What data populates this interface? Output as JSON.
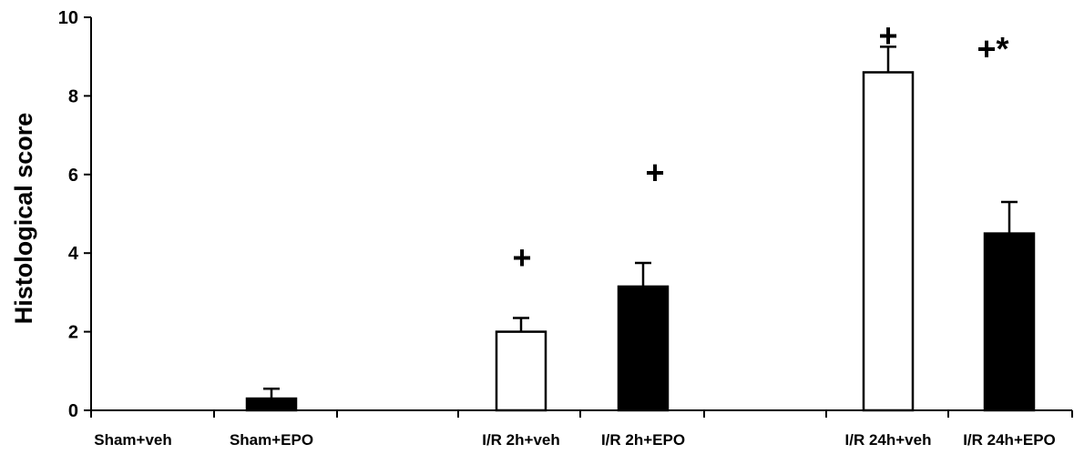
{
  "chart_data": {
    "type": "bar",
    "title": "",
    "xlabel": "",
    "ylabel": "Histological score",
    "ylim": [
      0,
      10
    ],
    "yticks": [
      0,
      2,
      4,
      6,
      8,
      10
    ],
    "grid": false,
    "categories": [
      "Sham+veh",
      "Sham+EPO",
      "I/R 2h+veh",
      "I/R 2h+EPO",
      "I/R 24h+veh",
      "I/R 24h+EPO"
    ],
    "values": [
      0,
      0.3,
      2.0,
      3.15,
      8.6,
      4.5
    ],
    "errors": [
      0,
      0.25,
      0.35,
      0.6,
      0.65,
      0.8
    ],
    "bar_colors": [
      "#ffffff",
      "#000000",
      "#ffffff",
      "#000000",
      "#ffffff",
      "#000000"
    ],
    "annotations": [
      "",
      "",
      "+",
      "+",
      "+",
      "+*"
    ]
  }
}
